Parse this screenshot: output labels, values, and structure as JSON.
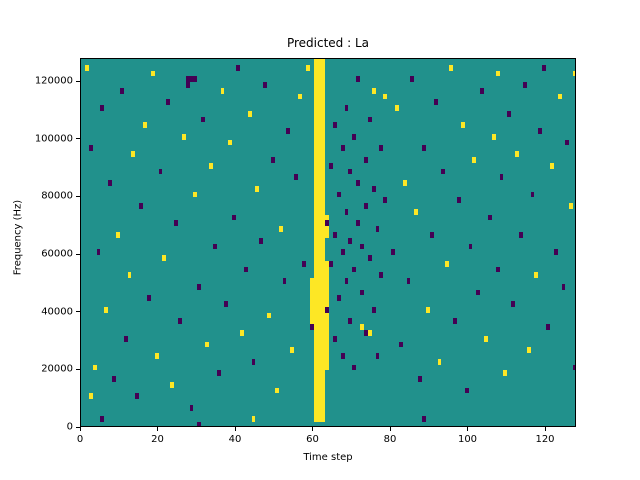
{
  "chart_data": {
    "type": "heatmap",
    "title": "Predicted : La",
    "xlabel": "Time step",
    "ylabel": "Frequency (Hz)",
    "xlim": [
      0,
      128
    ],
    "ylim": [
      0,
      128000
    ],
    "x_ticks": [
      0,
      20,
      40,
      60,
      80,
      100,
      120
    ],
    "y_ticks": [
      0,
      20000,
      40000,
      60000,
      80000,
      100000,
      120000
    ],
    "grid": {
      "cols": 128,
      "rows": 64,
      "cell_hz": 2000
    },
    "colormap": {
      "name": "viridis",
      "background": "#21918c",
      "low": "#440154",
      "high": "#fde725"
    },
    "bands": [
      {
        "x0": 60,
        "x1": 63,
        "y0": 2000,
        "y1": 128000,
        "value": "high"
      },
      {
        "x0": 63,
        "x1": 64,
        "y0": 20000,
        "y1": 58000,
        "value": "high"
      },
      {
        "x0": 63,
        "x1": 64,
        "y0": 66000,
        "y1": 74000,
        "value": "high"
      },
      {
        "x0": 59,
        "x1": 60,
        "y0": 36000,
        "y1": 52000,
        "value": "high"
      }
    ],
    "cells": [
      [
        1,
        62,
        "y"
      ],
      [
        2,
        48,
        "p"
      ],
      [
        2,
        5,
        "y"
      ],
      [
        3,
        10,
        "y"
      ],
      [
        4,
        30,
        "p"
      ],
      [
        5,
        55,
        "p"
      ],
      [
        5,
        1,
        "p"
      ],
      [
        6,
        20,
        "y"
      ],
      [
        7,
        42,
        "p"
      ],
      [
        8,
        8,
        "p"
      ],
      [
        9,
        33,
        "y"
      ],
      [
        10,
        58,
        "p"
      ],
      [
        11,
        15,
        "p"
      ],
      [
        12,
        26,
        "y"
      ],
      [
        13,
        47,
        "y"
      ],
      [
        14,
        5,
        "p"
      ],
      [
        15,
        38,
        "p"
      ],
      [
        16,
        52,
        "y"
      ],
      [
        17,
        22,
        "p"
      ],
      [
        18,
        61,
        "y"
      ],
      [
        19,
        12,
        "y"
      ],
      [
        20,
        44,
        "p"
      ],
      [
        21,
        29,
        "y"
      ],
      [
        22,
        56,
        "p"
      ],
      [
        23,
        7,
        "y"
      ],
      [
        24,
        35,
        "p"
      ],
      [
        25,
        18,
        "p"
      ],
      [
        26,
        50,
        "y"
      ],
      [
        27,
        60,
        "p"
      ],
      [
        27,
        59,
        "p"
      ],
      [
        28,
        60,
        "p"
      ],
      [
        28,
        3,
        "p"
      ],
      [
        29,
        40,
        "y"
      ],
      [
        29,
        60,
        "p"
      ],
      [
        30,
        24,
        "p"
      ],
      [
        30,
        0,
        "p"
      ],
      [
        31,
        53,
        "p"
      ],
      [
        32,
        14,
        "y"
      ],
      [
        33,
        45,
        "y"
      ],
      [
        34,
        31,
        "p"
      ],
      [
        35,
        9,
        "p"
      ],
      [
        36,
        58,
        "y"
      ],
      [
        37,
        21,
        "p"
      ],
      [
        38,
        49,
        "y"
      ],
      [
        39,
        36,
        "p"
      ],
      [
        40,
        62,
        "p"
      ],
      [
        41,
        16,
        "y"
      ],
      [
        42,
        27,
        "p"
      ],
      [
        43,
        54,
        "y"
      ],
      [
        44,
        11,
        "p"
      ],
      [
        44,
        1,
        "y"
      ],
      [
        45,
        41,
        "y"
      ],
      [
        46,
        32,
        "p"
      ],
      [
        47,
        59,
        "p"
      ],
      [
        48,
        19,
        "y"
      ],
      [
        49,
        46,
        "p"
      ],
      [
        50,
        6,
        "y"
      ],
      [
        51,
        34,
        "y"
      ],
      [
        52,
        25,
        "p"
      ],
      [
        53,
        51,
        "p"
      ],
      [
        54,
        13,
        "y"
      ],
      [
        55,
        43,
        "p"
      ],
      [
        56,
        57,
        "y"
      ],
      [
        57,
        28,
        "p"
      ],
      [
        58,
        62,
        "y"
      ],
      [
        59,
        17,
        "p"
      ],
      [
        63,
        20,
        "p"
      ],
      [
        63,
        35,
        "p"
      ],
      [
        64,
        28,
        "p"
      ],
      [
        64,
        45,
        "p"
      ],
      [
        65,
        15,
        "p"
      ],
      [
        65,
        33,
        "p"
      ],
      [
        65,
        52,
        "p"
      ],
      [
        66,
        22,
        "p"
      ],
      [
        66,
        40,
        "p"
      ],
      [
        67,
        30,
        "p"
      ],
      [
        67,
        48,
        "p"
      ],
      [
        67,
        12,
        "p"
      ],
      [
        68,
        25,
        "p"
      ],
      [
        68,
        37,
        "p"
      ],
      [
        68,
        55,
        "p"
      ],
      [
        69,
        18,
        "p"
      ],
      [
        69,
        32,
        "p"
      ],
      [
        69,
        44,
        "p"
      ],
      [
        70,
        27,
        "p"
      ],
      [
        70,
        50,
        "p"
      ],
      [
        70,
        10,
        "p"
      ],
      [
        71,
        35,
        "p"
      ],
      [
        71,
        42,
        "p"
      ],
      [
        71,
        60,
        "p"
      ],
      [
        72,
        23,
        "p"
      ],
      [
        72,
        31,
        "p"
      ],
      [
        72,
        17,
        "y"
      ],
      [
        73,
        46,
        "p"
      ],
      [
        73,
        16,
        "p"
      ],
      [
        73,
        38,
        "p"
      ],
      [
        74,
        29,
        "p"
      ],
      [
        74,
        53,
        "p"
      ],
      [
        74,
        16,
        "y"
      ],
      [
        75,
        20,
        "p"
      ],
      [
        75,
        41,
        "p"
      ],
      [
        75,
        58,
        "y"
      ],
      [
        76,
        34,
        "p"
      ],
      [
        76,
        12,
        "p"
      ],
      [
        77,
        26,
        "p"
      ],
      [
        77,
        48,
        "p"
      ],
      [
        78,
        39,
        "p"
      ],
      [
        78,
        57,
        "y"
      ],
      [
        80,
        30,
        "p"
      ],
      [
        81,
        55,
        "y"
      ],
      [
        82,
        14,
        "p"
      ],
      [
        83,
        42,
        "y"
      ],
      [
        84,
        25,
        "p"
      ],
      [
        85,
        60,
        "p"
      ],
      [
        86,
        37,
        "y"
      ],
      [
        87,
        8,
        "p"
      ],
      [
        88,
        48,
        "p"
      ],
      [
        88,
        1,
        "p"
      ],
      [
        89,
        20,
        "y"
      ],
      [
        90,
        33,
        "p"
      ],
      [
        91,
        56,
        "p"
      ],
      [
        92,
        11,
        "y"
      ],
      [
        93,
        44,
        "p"
      ],
      [
        94,
        28,
        "y"
      ],
      [
        95,
        62,
        "y"
      ],
      [
        96,
        18,
        "p"
      ],
      [
        97,
        39,
        "p"
      ],
      [
        98,
        52,
        "y"
      ],
      [
        99,
        6,
        "p"
      ],
      [
        100,
        31,
        "p"
      ],
      [
        101,
        46,
        "y"
      ],
      [
        102,
        23,
        "p"
      ],
      [
        103,
        58,
        "p"
      ],
      [
        104,
        15,
        "y"
      ],
      [
        105,
        36,
        "p"
      ],
      [
        106,
        50,
        "y"
      ],
      [
        107,
        27,
        "p"
      ],
      [
        107,
        61,
        "y"
      ],
      [
        108,
        43,
        "p"
      ],
      [
        109,
        9,
        "y"
      ],
      [
        110,
        54,
        "p"
      ],
      [
        111,
        21,
        "p"
      ],
      [
        112,
        47,
        "y"
      ],
      [
        113,
        33,
        "p"
      ],
      [
        114,
        59,
        "p"
      ],
      [
        115,
        13,
        "y"
      ],
      [
        116,
        40,
        "p"
      ],
      [
        117,
        26,
        "y"
      ],
      [
        118,
        51,
        "p"
      ],
      [
        119,
        62,
        "p"
      ],
      [
        120,
        17,
        "p"
      ],
      [
        121,
        45,
        "y"
      ],
      [
        122,
        30,
        "p"
      ],
      [
        123,
        57,
        "y"
      ],
      [
        124,
        24,
        "p"
      ],
      [
        125,
        49,
        "p"
      ],
      [
        126,
        38,
        "y"
      ],
      [
        127,
        61,
        "y"
      ],
      [
        127,
        10,
        "p"
      ]
    ]
  }
}
